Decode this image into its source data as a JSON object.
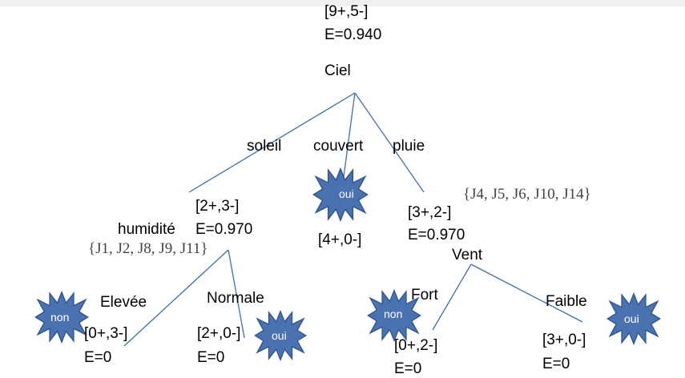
{
  "root": {
    "counts": "[9+,5-]",
    "entropy": "E=0.940",
    "attribute": "Ciel"
  },
  "branches": {
    "soleil": "soleil",
    "couvert": "couvert",
    "pluie": "pluie"
  },
  "soleil_node": {
    "counts": "[2+,3-]",
    "attribute": "humidité",
    "entropy": "E=0.970",
    "set": "{J1, J2, J8, J9, J11}",
    "elevee": {
      "branch": "Elevée",
      "counts": "[0+,3-]",
      "entropy": "E=0",
      "decision": "non"
    },
    "normale": {
      "branch": "Normale",
      "counts": "[2+,0-]",
      "entropy": "E=0",
      "decision": "oui"
    }
  },
  "couvert_node": {
    "decision": "oui",
    "counts": "[4+,0-]"
  },
  "pluie_node": {
    "counts": "[3+,2-]",
    "entropy": "E=0.970",
    "attribute": "Vent",
    "set": "{J4, J5, J6, J10, J14}",
    "fort": {
      "branch": "Fort",
      "counts": "[0+,2-]",
      "entropy": "E=0",
      "decision": "non"
    },
    "faible": {
      "branch": "Faible",
      "counts": "[3+,0-]",
      "entropy": "E=0",
      "decision": "oui"
    }
  },
  "colors": {
    "edge": "#3f6fb0",
    "star_fill": "#4a72b0",
    "star_stroke": "#2f5690",
    "background": "#ffffff"
  }
}
